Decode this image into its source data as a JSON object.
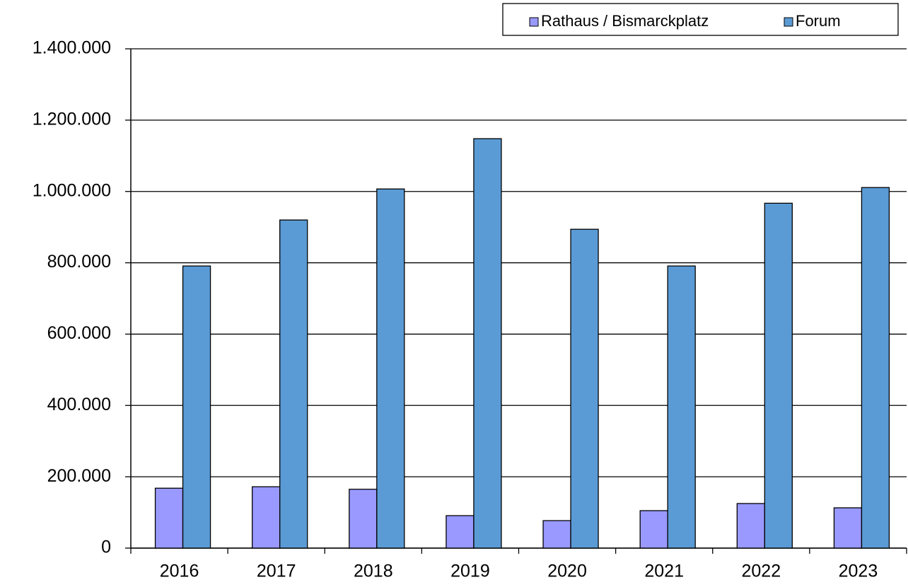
{
  "chart_data": {
    "type": "bar",
    "categories": [
      "2016",
      "2017",
      "2018",
      "2019",
      "2020",
      "2021",
      "2022",
      "2023"
    ],
    "series": [
      {
        "name": "Rathaus / Bismarckplatz",
        "color": "#9999ff",
        "values": [
          168000,
          172000,
          165000,
          91000,
          77000,
          105000,
          125000,
          113000
        ]
      },
      {
        "name": "Forum",
        "color": "#5b9bd5",
        "values": [
          791000,
          920000,
          1007000,
          1148000,
          894000,
          791000,
          967000,
          1011000
        ]
      }
    ],
    "ylim": [
      0,
      1400000
    ],
    "yticks": [
      0,
      {
        "value": 200000,
        "label": "200.000"
      },
      {
        "value": 400000,
        "label": "400.000"
      },
      {
        "value": 600000,
        "label": "600.000"
      },
      {
        "value": 800000,
        "label": "800.000"
      },
      {
        "value": 1000000,
        "label": "1.000.000"
      },
      {
        "value": 1200000,
        "label": "1.200.000"
      },
      {
        "value": 1400000,
        "label": "1.400.000"
      }
    ],
    "grid": true,
    "legend": "top-right"
  }
}
